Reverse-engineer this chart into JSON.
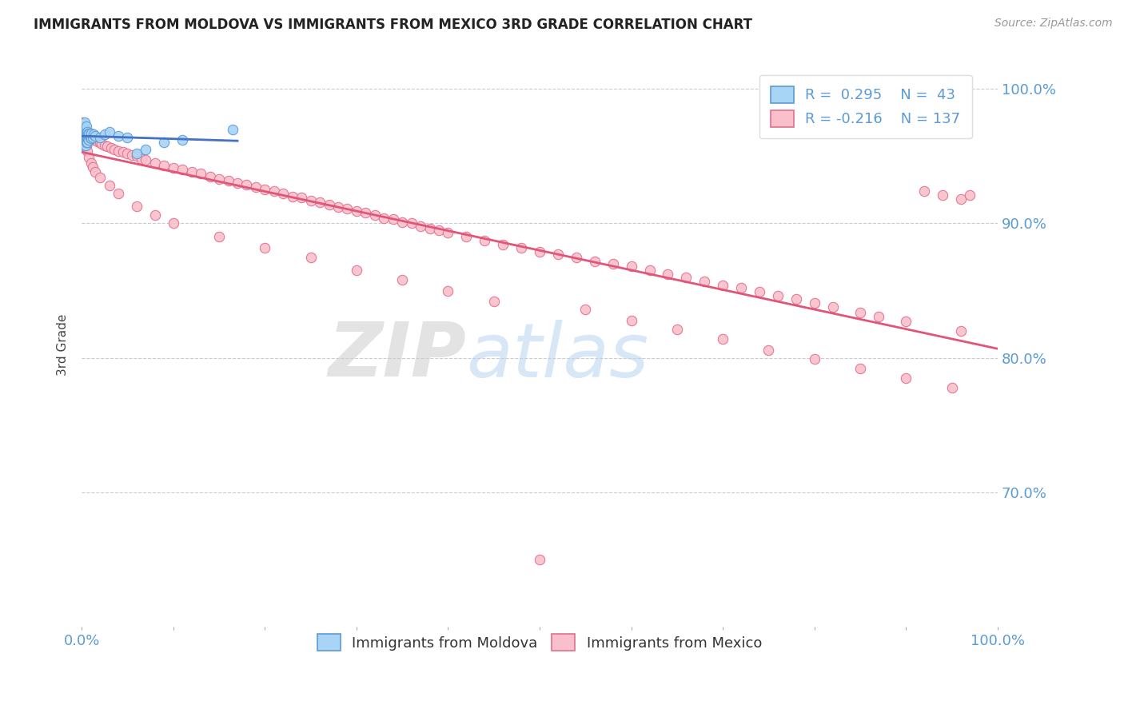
{
  "title": "IMMIGRANTS FROM MOLDOVA VS IMMIGRANTS FROM MEXICO 3RD GRADE CORRELATION CHART",
  "source": "Source: ZipAtlas.com",
  "ylabel": "3rd Grade",
  "legend_items": [
    "Immigrants from Moldova",
    "Immigrants from Mexico"
  ],
  "r_moldova": 0.295,
  "n_moldova": 43,
  "r_mexico": -0.216,
  "n_mexico": 137,
  "xlim": [
    0.0,
    1.0
  ],
  "ylim": [
    0.6,
    1.02
  ],
  "yticks": [
    0.7,
    0.8,
    0.9,
    1.0
  ],
  "ytick_labels": [
    "70.0%",
    "80.0%",
    "90.0%",
    "100.0%"
  ],
  "xtick_labels": [
    "0.0%",
    "100.0%"
  ],
  "color_moldova": "#A8D4F5",
  "color_mexico": "#F9C0CB",
  "edge_color_moldova": "#5B9BD5",
  "edge_color_mexico": "#E07090",
  "line_color_moldova": "#4472C4",
  "line_color_mexico": "#E05578",
  "background_color": "#FFFFFF",
  "title_color": "#222222",
  "axis_color": "#5B9BD5",
  "grid_color": "#CCCCCC",
  "watermark_zip": "ZIP",
  "watermark_atlas": "atlas",
  "moldova_x": [
    0.001,
    0.001,
    0.001,
    0.002,
    0.002,
    0.002,
    0.002,
    0.003,
    0.003,
    0.003,
    0.003,
    0.003,
    0.004,
    0.004,
    0.004,
    0.004,
    0.005,
    0.005,
    0.005,
    0.005,
    0.006,
    0.006,
    0.006,
    0.007,
    0.007,
    0.008,
    0.008,
    0.009,
    0.01,
    0.01,
    0.012,
    0.013,
    0.015,
    0.02,
    0.025,
    0.03,
    0.04,
    0.05,
    0.06,
    0.07,
    0.09,
    0.11,
    0.165
  ],
  "moldova_y": [
    0.96,
    0.965,
    0.968,
    0.958,
    0.963,
    0.967,
    0.97,
    0.96,
    0.964,
    0.968,
    0.972,
    0.975,
    0.958,
    0.962,
    0.966,
    0.97,
    0.96,
    0.964,
    0.968,
    0.972,
    0.96,
    0.964,
    0.968,
    0.963,
    0.967,
    0.962,
    0.966,
    0.964,
    0.963,
    0.967,
    0.964,
    0.966,
    0.965,
    0.964,
    0.966,
    0.968,
    0.965,
    0.964,
    0.952,
    0.955,
    0.96,
    0.962,
    0.97
  ],
  "mexico_x": [
    0.001,
    0.001,
    0.001,
    0.002,
    0.002,
    0.002,
    0.003,
    0.003,
    0.003,
    0.004,
    0.004,
    0.004,
    0.005,
    0.005,
    0.005,
    0.006,
    0.006,
    0.007,
    0.007,
    0.008,
    0.008,
    0.009,
    0.01,
    0.01,
    0.011,
    0.012,
    0.013,
    0.015,
    0.017,
    0.02,
    0.022,
    0.025,
    0.028,
    0.032,
    0.036,
    0.04,
    0.045,
    0.05,
    0.055,
    0.06,
    0.065,
    0.07,
    0.08,
    0.09,
    0.1,
    0.11,
    0.12,
    0.13,
    0.14,
    0.15,
    0.16,
    0.17,
    0.18,
    0.19,
    0.2,
    0.21,
    0.22,
    0.23,
    0.24,
    0.25,
    0.26,
    0.27,
    0.28,
    0.29,
    0.3,
    0.31,
    0.32,
    0.33,
    0.34,
    0.35,
    0.36,
    0.37,
    0.38,
    0.39,
    0.4,
    0.42,
    0.44,
    0.46,
    0.48,
    0.5,
    0.52,
    0.54,
    0.56,
    0.58,
    0.6,
    0.62,
    0.64,
    0.66,
    0.68,
    0.7,
    0.72,
    0.74,
    0.76,
    0.78,
    0.8,
    0.82,
    0.85,
    0.87,
    0.9,
    0.92,
    0.94,
    0.96,
    0.001,
    0.002,
    0.003,
    0.004,
    0.005,
    0.006,
    0.008,
    0.01,
    0.012,
    0.015,
    0.02,
    0.03,
    0.04,
    0.06,
    0.08,
    0.1,
    0.15,
    0.2,
    0.25,
    0.3,
    0.35,
    0.4,
    0.45,
    0.5,
    0.55,
    0.6,
    0.65,
    0.7,
    0.75,
    0.8,
    0.85,
    0.9,
    0.95,
    0.96,
    0.97
  ],
  "mexico_y": [
    0.968,
    0.972,
    0.975,
    0.965,
    0.968,
    0.972,
    0.963,
    0.967,
    0.97,
    0.962,
    0.966,
    0.97,
    0.96,
    0.964,
    0.968,
    0.963,
    0.967,
    0.962,
    0.966,
    0.962,
    0.966,
    0.964,
    0.962,
    0.965,
    0.963,
    0.964,
    0.963,
    0.962,
    0.961,
    0.96,
    0.959,
    0.958,
    0.957,
    0.956,
    0.955,
    0.954,
    0.953,
    0.952,
    0.951,
    0.95,
    0.948,
    0.947,
    0.945,
    0.943,
    0.941,
    0.94,
    0.938,
    0.937,
    0.935,
    0.933,
    0.932,
    0.93,
    0.929,
    0.927,
    0.925,
    0.924,
    0.922,
    0.92,
    0.919,
    0.917,
    0.916,
    0.914,
    0.912,
    0.911,
    0.909,
    0.908,
    0.906,
    0.904,
    0.903,
    0.901,
    0.9,
    0.898,
    0.896,
    0.895,
    0.893,
    0.89,
    0.887,
    0.884,
    0.882,
    0.879,
    0.877,
    0.875,
    0.872,
    0.87,
    0.868,
    0.865,
    0.862,
    0.86,
    0.857,
    0.854,
    0.852,
    0.849,
    0.846,
    0.844,
    0.841,
    0.838,
    0.834,
    0.831,
    0.827,
    0.924,
    0.921,
    0.918,
    0.97,
    0.966,
    0.963,
    0.96,
    0.957,
    0.954,
    0.949,
    0.945,
    0.942,
    0.938,
    0.934,
    0.928,
    0.922,
    0.913,
    0.906,
    0.9,
    0.89,
    0.882,
    0.875,
    0.865,
    0.858,
    0.85,
    0.842,
    0.65,
    0.836,
    0.828,
    0.821,
    0.814,
    0.806,
    0.799,
    0.792,
    0.785,
    0.778,
    0.82,
    0.921
  ]
}
